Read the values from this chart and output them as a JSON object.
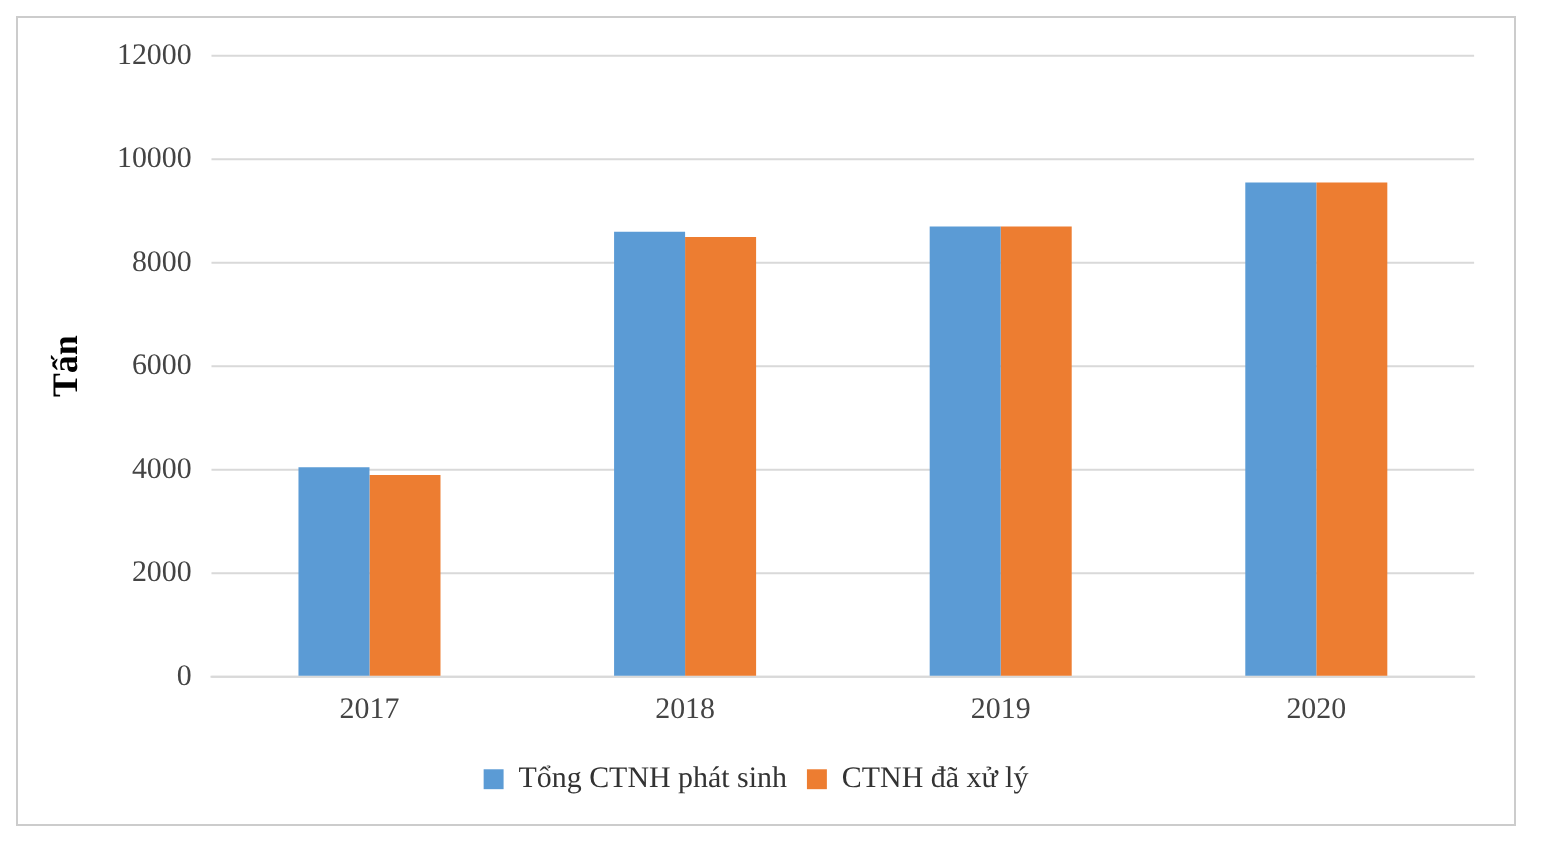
{
  "chart_data": {
    "type": "bar",
    "ylabel": "Tấn",
    "categories": [
      "2017",
      "2018",
      "2019",
      "2020"
    ],
    "series": [
      {
        "name": "Tổng CTNH phát sinh",
        "color": "#5b9bd5",
        "values": [
          4050,
          8600,
          8700,
          9550
        ]
      },
      {
        "name": "CTNH đã xử lý",
        "color": "#ed7d31",
        "values": [
          3900,
          8500,
          8700,
          9550
        ]
      }
    ],
    "ylim": [
      0,
      12000
    ],
    "yticks": [
      0,
      2000,
      4000,
      6000,
      8000,
      10000,
      12000
    ],
    "grid": "y",
    "legend": "bottom"
  }
}
